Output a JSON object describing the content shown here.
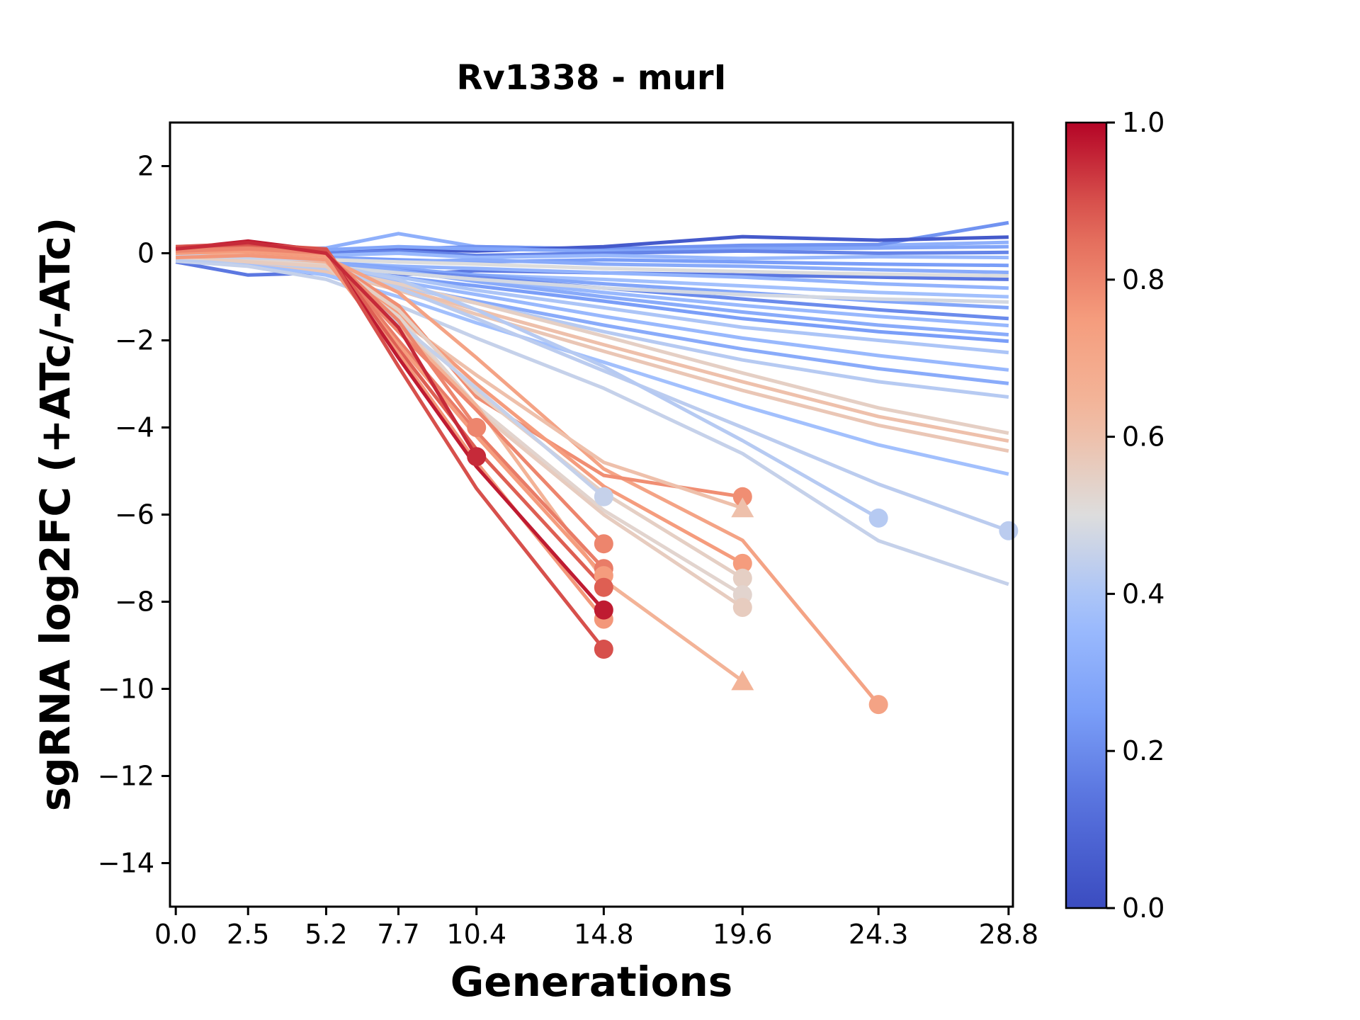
{
  "chart_data": {
    "type": "line",
    "title": "Rv1338 - murI",
    "xlabel": "Generations",
    "ylabel": "sgRNA log2FC (+ATc/-ATc)",
    "xlim": [
      -0.2,
      28.95
    ],
    "ylim": [
      -15,
      3
    ],
    "grid": false,
    "x_ticks": [
      0.0,
      2.5,
      5.2,
      7.7,
      10.4,
      14.8,
      19.6,
      24.3,
      28.8
    ],
    "x_tick_labels": [
      "0.0",
      "2.5",
      "5.2",
      "7.7",
      "10.4",
      "14.8",
      "19.6",
      "24.3",
      "28.8"
    ],
    "y_ticks": [
      2,
      0,
      -2,
      -4,
      -6,
      -8,
      -10,
      -12,
      -14
    ],
    "y_tick_labels": [
      "2",
      "0",
      "−2",
      "−4",
      "−6",
      "−8",
      "−10",
      "−12",
      "−14"
    ],
    "colormap": "coolwarm",
    "colorbar": {
      "min": 0.0,
      "max": 1.0,
      "tick_values": [
        1.0,
        0.8,
        0.6,
        0.4,
        0.2,
        0.0
      ],
      "tick_labels": [
        "1.0",
        "0.8",
        "0.6",
        "0.4",
        "0.2",
        "0.0"
      ]
    },
    "x": [
      0,
      2.5,
      5.2,
      7.7,
      10.4,
      14.8,
      19.6,
      24.3,
      28.8
    ],
    "series": [
      {
        "c": 0.32,
        "marker": null,
        "y": [
          0.1,
          0.05,
          0.12,
          0.45,
          0.15,
          0.1,
          0.12,
          0.18,
          0.25
        ]
      },
      {
        "c": 0.22,
        "marker": null,
        "y": [
          0.0,
          -0.05,
          0.05,
          0.1,
          0.15,
          0.1,
          0.18,
          0.2,
          0.7
        ]
      },
      {
        "c": 0.05,
        "marker": null,
        "y": [
          -0.05,
          -0.1,
          0.0,
          0.08,
          0.05,
          0.15,
          0.38,
          0.3,
          0.37
        ]
      },
      {
        "c": 0.28,
        "marker": null,
        "y": [
          0.05,
          0.0,
          0.08,
          0.15,
          0.1,
          0.05,
          0.1,
          0.12,
          0.15
        ]
      },
      {
        "c": 0.18,
        "marker": null,
        "y": [
          -0.1,
          -0.08,
          0.0,
          0.05,
          -0.05,
          0.0,
          0.05,
          0.0,
          0.02
        ]
      },
      {
        "c": 0.35,
        "marker": null,
        "y": [
          0.0,
          -0.12,
          -0.05,
          0.0,
          -0.1,
          -0.05,
          -0.12,
          -0.08,
          -0.1
        ]
      },
      {
        "c": 0.25,
        "marker": null,
        "y": [
          -0.15,
          -0.2,
          -0.1,
          -0.15,
          -0.2,
          -0.15,
          -0.2,
          -0.25,
          -0.28
        ]
      },
      {
        "c": 0.3,
        "marker": null,
        "y": [
          -0.05,
          -0.15,
          -0.12,
          -0.2,
          -0.15,
          -0.25,
          -0.3,
          -0.38,
          -0.44
        ]
      },
      {
        "c": 0.15,
        "marker": null,
        "y": [
          -0.2,
          -0.5,
          -0.45,
          -0.5,
          -0.4,
          -0.45,
          -0.5,
          -0.55,
          -0.6
        ]
      },
      {
        "c": 0.33,
        "marker": null,
        "y": [
          -0.1,
          -0.18,
          -0.22,
          -0.3,
          -0.35,
          -0.45,
          -0.55,
          -0.7,
          -0.8
        ]
      },
      {
        "c": 0.38,
        "marker": null,
        "y": [
          -0.15,
          -0.25,
          -0.3,
          -0.4,
          -0.5,
          -0.6,
          -0.75,
          -0.9,
          -1.0
        ]
      },
      {
        "c": 0.28,
        "marker": null,
        "y": [
          0.0,
          -0.1,
          -0.2,
          -0.35,
          -0.5,
          -0.7,
          -0.9,
          -1.1,
          -1.25
        ]
      },
      {
        "c": 0.2,
        "marker": null,
        "y": [
          -0.05,
          -0.15,
          -0.25,
          -0.4,
          -0.55,
          -0.8,
          -1.05,
          -1.3,
          -1.5
        ]
      },
      {
        "c": 0.35,
        "marker": null,
        "y": [
          -0.1,
          -0.2,
          -0.3,
          -0.45,
          -0.6,
          -0.9,
          -1.2,
          -1.45,
          -1.66
        ]
      },
      {
        "c": 0.3,
        "marker": null,
        "y": [
          0.05,
          -0.05,
          -0.2,
          -0.4,
          -0.65,
          -1.0,
          -1.35,
          -1.65,
          -1.87
        ]
      },
      {
        "c": 0.25,
        "marker": null,
        "y": [
          -0.15,
          -0.25,
          -0.35,
          -0.55,
          -0.75,
          -1.1,
          -1.5,
          -1.8,
          -2.02
        ]
      },
      {
        "c": 0.4,
        "marker": null,
        "y": [
          -0.05,
          -0.15,
          -0.3,
          -0.55,
          -0.85,
          -1.25,
          -1.7,
          -2.0,
          -2.28
        ]
      },
      {
        "c": 0.35,
        "marker": null,
        "y": [
          -0.1,
          -0.22,
          -0.38,
          -0.65,
          -0.95,
          -1.45,
          -1.95,
          -2.35,
          -2.68
        ]
      },
      {
        "c": 0.3,
        "marker": null,
        "y": [
          -0.15,
          -0.28,
          -0.45,
          -0.75,
          -1.1,
          -1.65,
          -2.2,
          -2.65,
          -2.99
        ]
      },
      {
        "c": 0.42,
        "marker": null,
        "y": [
          -0.08,
          -0.2,
          -0.4,
          -0.75,
          -1.15,
          -1.8,
          -2.45,
          -2.95,
          -3.3
        ]
      },
      {
        "c": 0.38,
        "marker": null,
        "y": [
          -0.12,
          -0.25,
          -0.5,
          -1.0,
          -1.6,
          -2.5,
          -3.5,
          -4.4,
          -5.07
        ]
      },
      {
        "c": 0.45,
        "marker": null,
        "y": [
          -0.18,
          -0.3,
          -0.6,
          -1.2,
          -1.95,
          -3.1,
          -4.6,
          -6.6,
          -7.6
        ]
      },
      {
        "c": 0.5,
        "marker": null,
        "y": [
          -0.05,
          -0.1,
          -0.15,
          -0.2,
          -0.25,
          -0.35,
          -0.42,
          -0.48,
          -0.52
        ]
      },
      {
        "c": 0.48,
        "marker": null,
        "y": [
          -0.12,
          -0.2,
          -0.3,
          -0.45,
          -0.6,
          -0.8,
          -0.95,
          -1.05,
          -1.12
        ]
      },
      {
        "c": 0.55,
        "marker": null,
        "y": [
          -0.05,
          -0.15,
          -0.35,
          -0.7,
          -1.15,
          -1.9,
          -2.75,
          -3.55,
          -4.13
        ]
      },
      {
        "c": 0.6,
        "marker": null,
        "y": [
          -0.1,
          -0.2,
          -0.4,
          -0.8,
          -1.3,
          -2.1,
          -2.95,
          -3.75,
          -4.31
        ]
      },
      {
        "c": 0.58,
        "marker": null,
        "y": [
          -0.08,
          -0.18,
          -0.42,
          -0.85,
          -1.4,
          -2.25,
          -3.15,
          -3.95,
          -4.54
        ]
      },
      {
        "c": 0.43,
        "marker": "circle",
        "y": [
          -0.15,
          -0.2,
          -0.35,
          -0.8,
          -1.5,
          -2.7,
          -4.0,
          -5.3,
          -6.37
        ]
      },
      {
        "c": 0.42,
        "marker": "circle",
        "y": [
          -0.1,
          -0.15,
          -0.25,
          -0.6,
          -1.3,
          -2.6,
          -4.3,
          -6.08
        ]
      },
      {
        "c": 0.72,
        "marker": "circle",
        "y": [
          0.05,
          0.0,
          -0.1,
          -0.9,
          -2.4,
          -4.95,
          -6.59,
          -10.36
        ]
      },
      {
        "c": 0.78,
        "marker": "circle",
        "y": [
          0.0,
          0.05,
          -0.1,
          -1.2,
          -3.3,
          -5.1,
          -5.59
        ]
      },
      {
        "c": 0.6,
        "marker": "triangle",
        "y": [
          -0.05,
          -0.1,
          -0.2,
          -1.5,
          -2.8,
          -4.8,
          -5.85
        ]
      },
      {
        "c": 0.75,
        "marker": "circle",
        "y": [
          0.05,
          0.0,
          -0.1,
          -1.4,
          -3.0,
          -5.35,
          -7.12
        ]
      },
      {
        "c": 0.55,
        "marker": "circle",
        "y": [
          0.0,
          -0.05,
          -0.15,
          -1.3,
          -3.2,
          -5.5,
          -7.46
        ]
      },
      {
        "c": 0.53,
        "marker": "circle",
        "y": [
          -0.1,
          -0.15,
          -0.25,
          -1.45,
          -3.5,
          -5.9,
          -7.84
        ]
      },
      {
        "c": 0.56,
        "marker": "circle",
        "y": [
          -0.05,
          -0.2,
          -0.3,
          -1.55,
          -3.6,
          -6.0,
          -8.13
        ]
      },
      {
        "c": 0.65,
        "marker": "triangle",
        "y": [
          0.0,
          -0.05,
          -0.2,
          -1.7,
          -3.5,
          -7.5,
          -9.82
        ]
      },
      {
        "c": 0.45,
        "marker": "circle",
        "y": [
          -0.05,
          -0.1,
          -0.15,
          -1.6,
          -3.1,
          -5.59
        ]
      },
      {
        "c": 0.8,
        "marker": "circle",
        "y": [
          0.05,
          0.05,
          -0.05,
          -1.8,
          -3.6,
          -6.67
        ]
      },
      {
        "c": 0.82,
        "marker": "circle",
        "y": [
          0.1,
          0.15,
          0.05,
          -2.0,
          -4.1,
          -7.24
        ]
      },
      {
        "c": 0.75,
        "marker": "circle",
        "y": [
          0.0,
          0.05,
          -0.05,
          -2.1,
          -4.2,
          -7.4
        ]
      },
      {
        "c": 0.88,
        "marker": "circle",
        "y": [
          0.15,
          0.2,
          0.1,
          -2.2,
          -4.5,
          -7.67
        ]
      },
      {
        "c": 0.76,
        "marker": "circle",
        "y": [
          -0.1,
          -0.05,
          -0.15,
          -2.3,
          -4.8,
          -8.4
        ]
      },
      {
        "c": 0.97,
        "marker": "circle",
        "y": [
          0.1,
          0.28,
          0.05,
          -2.4,
          -4.9,
          -8.19
        ]
      },
      {
        "c": 0.9,
        "marker": "circle",
        "y": [
          0.15,
          0.22,
          0.08,
          -2.6,
          -5.4,
          -9.09
        ]
      },
      {
        "c": 0.8,
        "marker": "circle",
        "y": [
          0.05,
          0.1,
          0.0,
          -1.55,
          -4.0
        ]
      },
      {
        "c": 0.95,
        "marker": "circle",
        "y": [
          0.1,
          0.25,
          0.0,
          -1.7,
          -4.67
        ]
      }
    ]
  }
}
